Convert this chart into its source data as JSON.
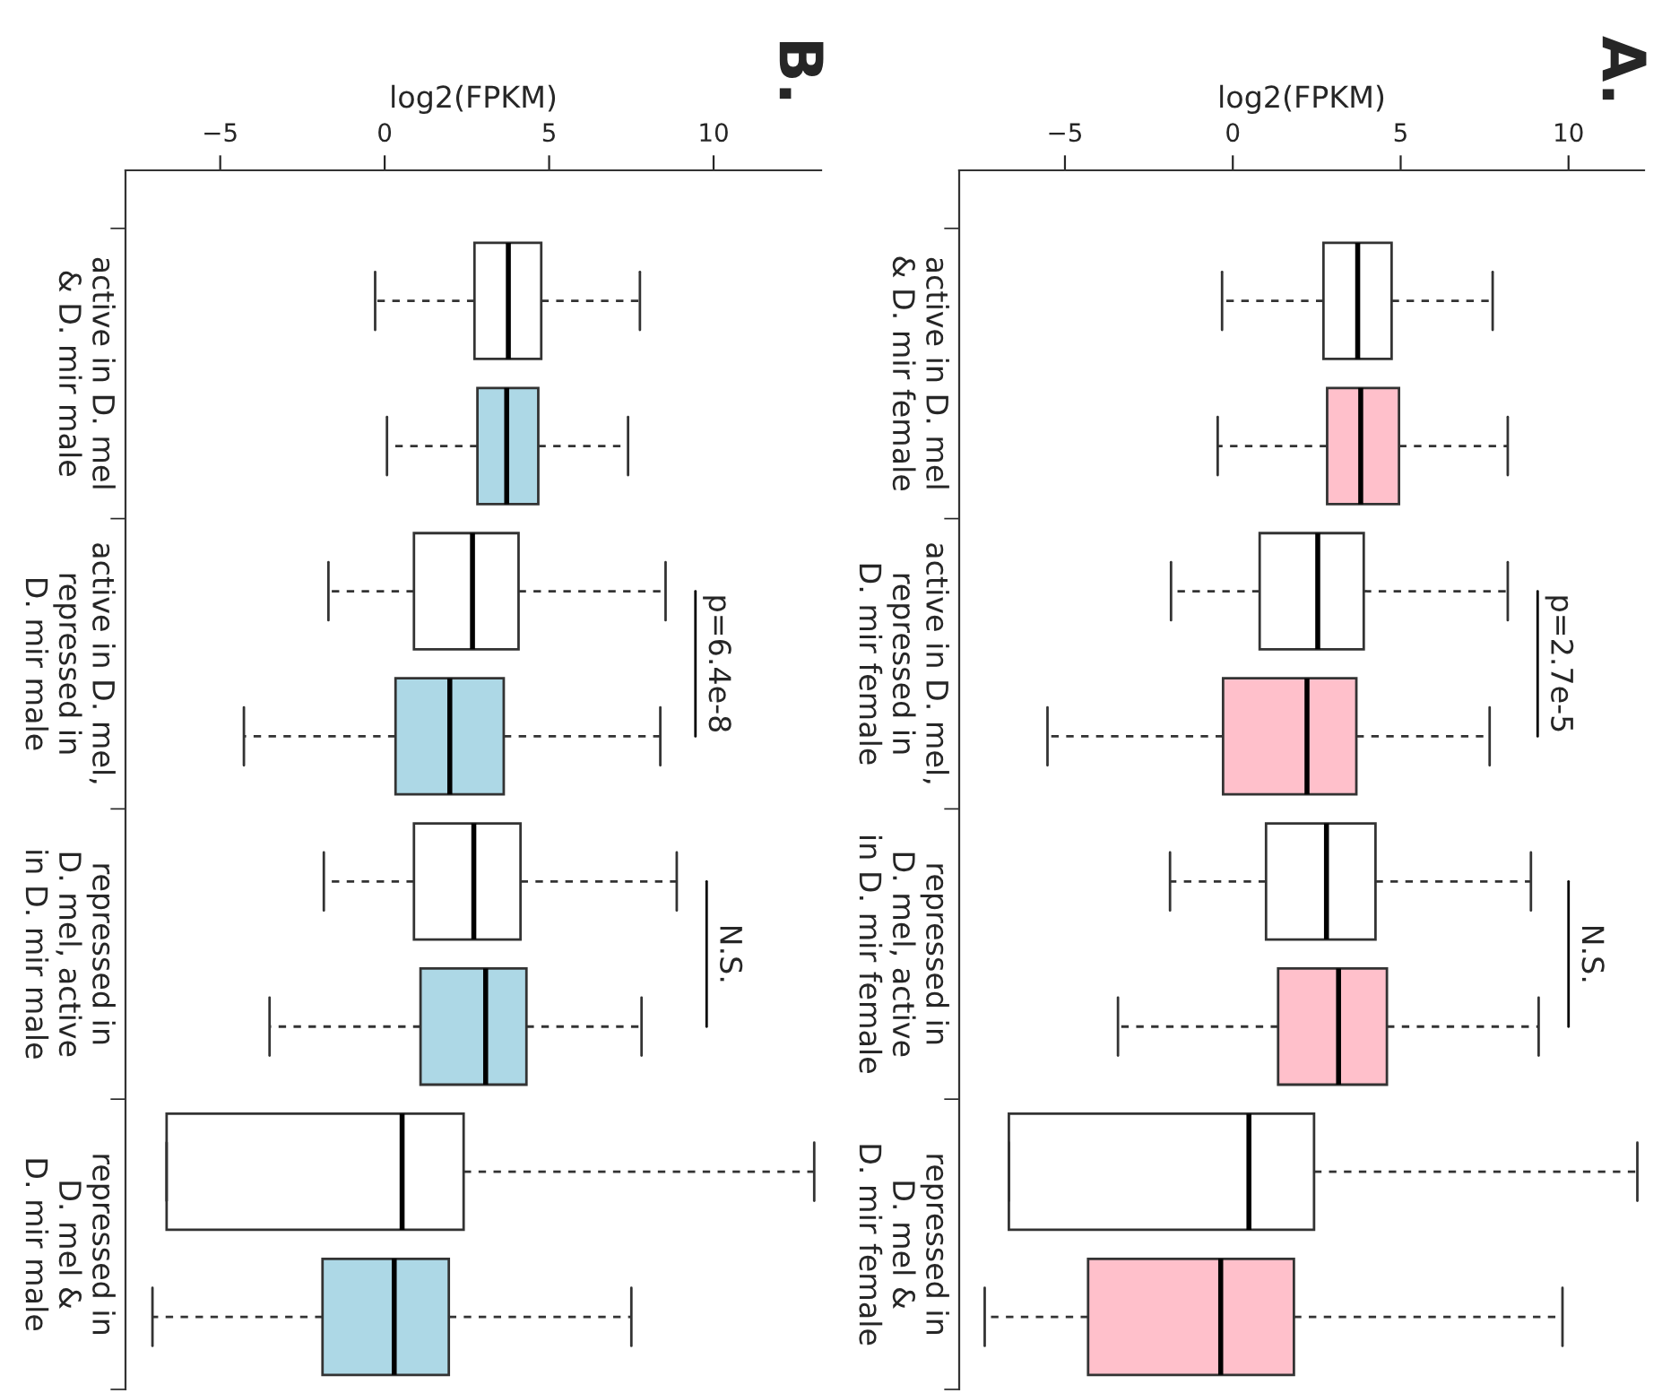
{
  "chart_data": [
    {
      "type": "box",
      "title": "A.",
      "xlabel": "log2(FPKM)",
      "orientation": "horizontal",
      "categories": [
        "active in D. mel\n& D. mir female",
        "active in D. mel,\nrepressed in\nD. mir female",
        "repressed in\nD. mel, active\nin D. mir female",
        "repressed in\nD. mel &\nD. mir female"
      ],
      "xlim": [
        -8.15,
        12.25
      ],
      "xticks": [
        {
          "value": -5,
          "label": "−5"
        },
        0,
        5,
        10
      ],
      "series": [
        {
          "color": "#ffffff",
          "boxes": [
            {
              "low": -0.32,
              "q1": 2.7,
              "median": 3.72,
              "q3": 4.73,
              "high": 7.74
            },
            {
              "low": -1.84,
              "q1": 0.8,
              "median": 2.53,
              "q3": 3.9,
              "high": 8.19
            },
            {
              "low": -1.87,
              "q1": 0.99,
              "median": 2.79,
              "q3": 4.25,
              "high": 8.88
            },
            {
              "low": -6.67,
              "q1": -6.67,
              "median": 0.48,
              "q3": 2.42,
              "high": 12.05
            }
          ]
        },
        {
          "color": "#ffc0cb",
          "boxes": [
            {
              "low": -0.45,
              "q1": 2.81,
              "median": 3.81,
              "q3": 4.95,
              "high": 8.19
            },
            {
              "low": -5.52,
              "q1": -0.29,
              "median": 2.21,
              "q3": 3.68,
              "high": 7.65
            },
            {
              "low": -3.42,
              "q1": 1.35,
              "median": 3.15,
              "q3": 4.59,
              "high": 9.11
            },
            {
              "low": -7.39,
              "q1": -4.31,
              "median": -0.36,
              "q3": 1.82,
              "high": 9.82
            }
          ]
        }
      ],
      "annotations": [
        "p=2.7e-5",
        "N.S."
      ],
      "grid": false,
      "legend": false
    },
    {
      "type": "box",
      "title": "B.",
      "xlabel": "log2(FPKM)",
      "orientation": "horizontal",
      "categories": [
        "active in D. mel\n& D. mir male",
        "active in D. mel,\nrepressed in\nD. mir male",
        "repressed in\nD. mel, active\nin D. mir male",
        "repressed in\nD. mel &\nD. mir male"
      ],
      "xlim": [
        -7.88,
        13.27
      ],
      "xticks": [
        {
          "value": -5,
          "label": "−5"
        },
        0,
        5,
        10
      ],
      "series": [
        {
          "color": "#ffffff",
          "boxes": [
            {
              "low": -0.29,
              "q1": 2.73,
              "median": 3.76,
              "q3": 4.76,
              "high": 7.76
            },
            {
              "low": -1.71,
              "q1": 0.89,
              "median": 2.67,
              "q3": 4.07,
              "high": 8.54
            },
            {
              "low": -1.85,
              "q1": 0.89,
              "median": 2.71,
              "q3": 4.13,
              "high": 8.88
            },
            {
              "low": -6.63,
              "q1": -6.63,
              "median": 0.53,
              "q3": 2.4,
              "high": 13.06
            }
          ]
        },
        {
          "color": "#add8e6",
          "boxes": [
            {
              "low": 0.07,
              "q1": 2.82,
              "median": 3.71,
              "q3": 4.67,
              "high": 7.4
            },
            {
              "low": -4.28,
              "q1": 0.33,
              "median": 1.98,
              "q3": 3.62,
              "high": 8.38
            },
            {
              "low": -3.5,
              "q1": 1.09,
              "median": 3.07,
              "q3": 4.31,
              "high": 7.81
            },
            {
              "low": -7.06,
              "q1": -1.89,
              "median": 0.29,
              "q3": 1.95,
              "high": 7.5
            }
          ]
        }
      ],
      "annotations": [
        "p=6.4e-8",
        "N.S."
      ],
      "grid": false,
      "legend": false
    }
  ]
}
